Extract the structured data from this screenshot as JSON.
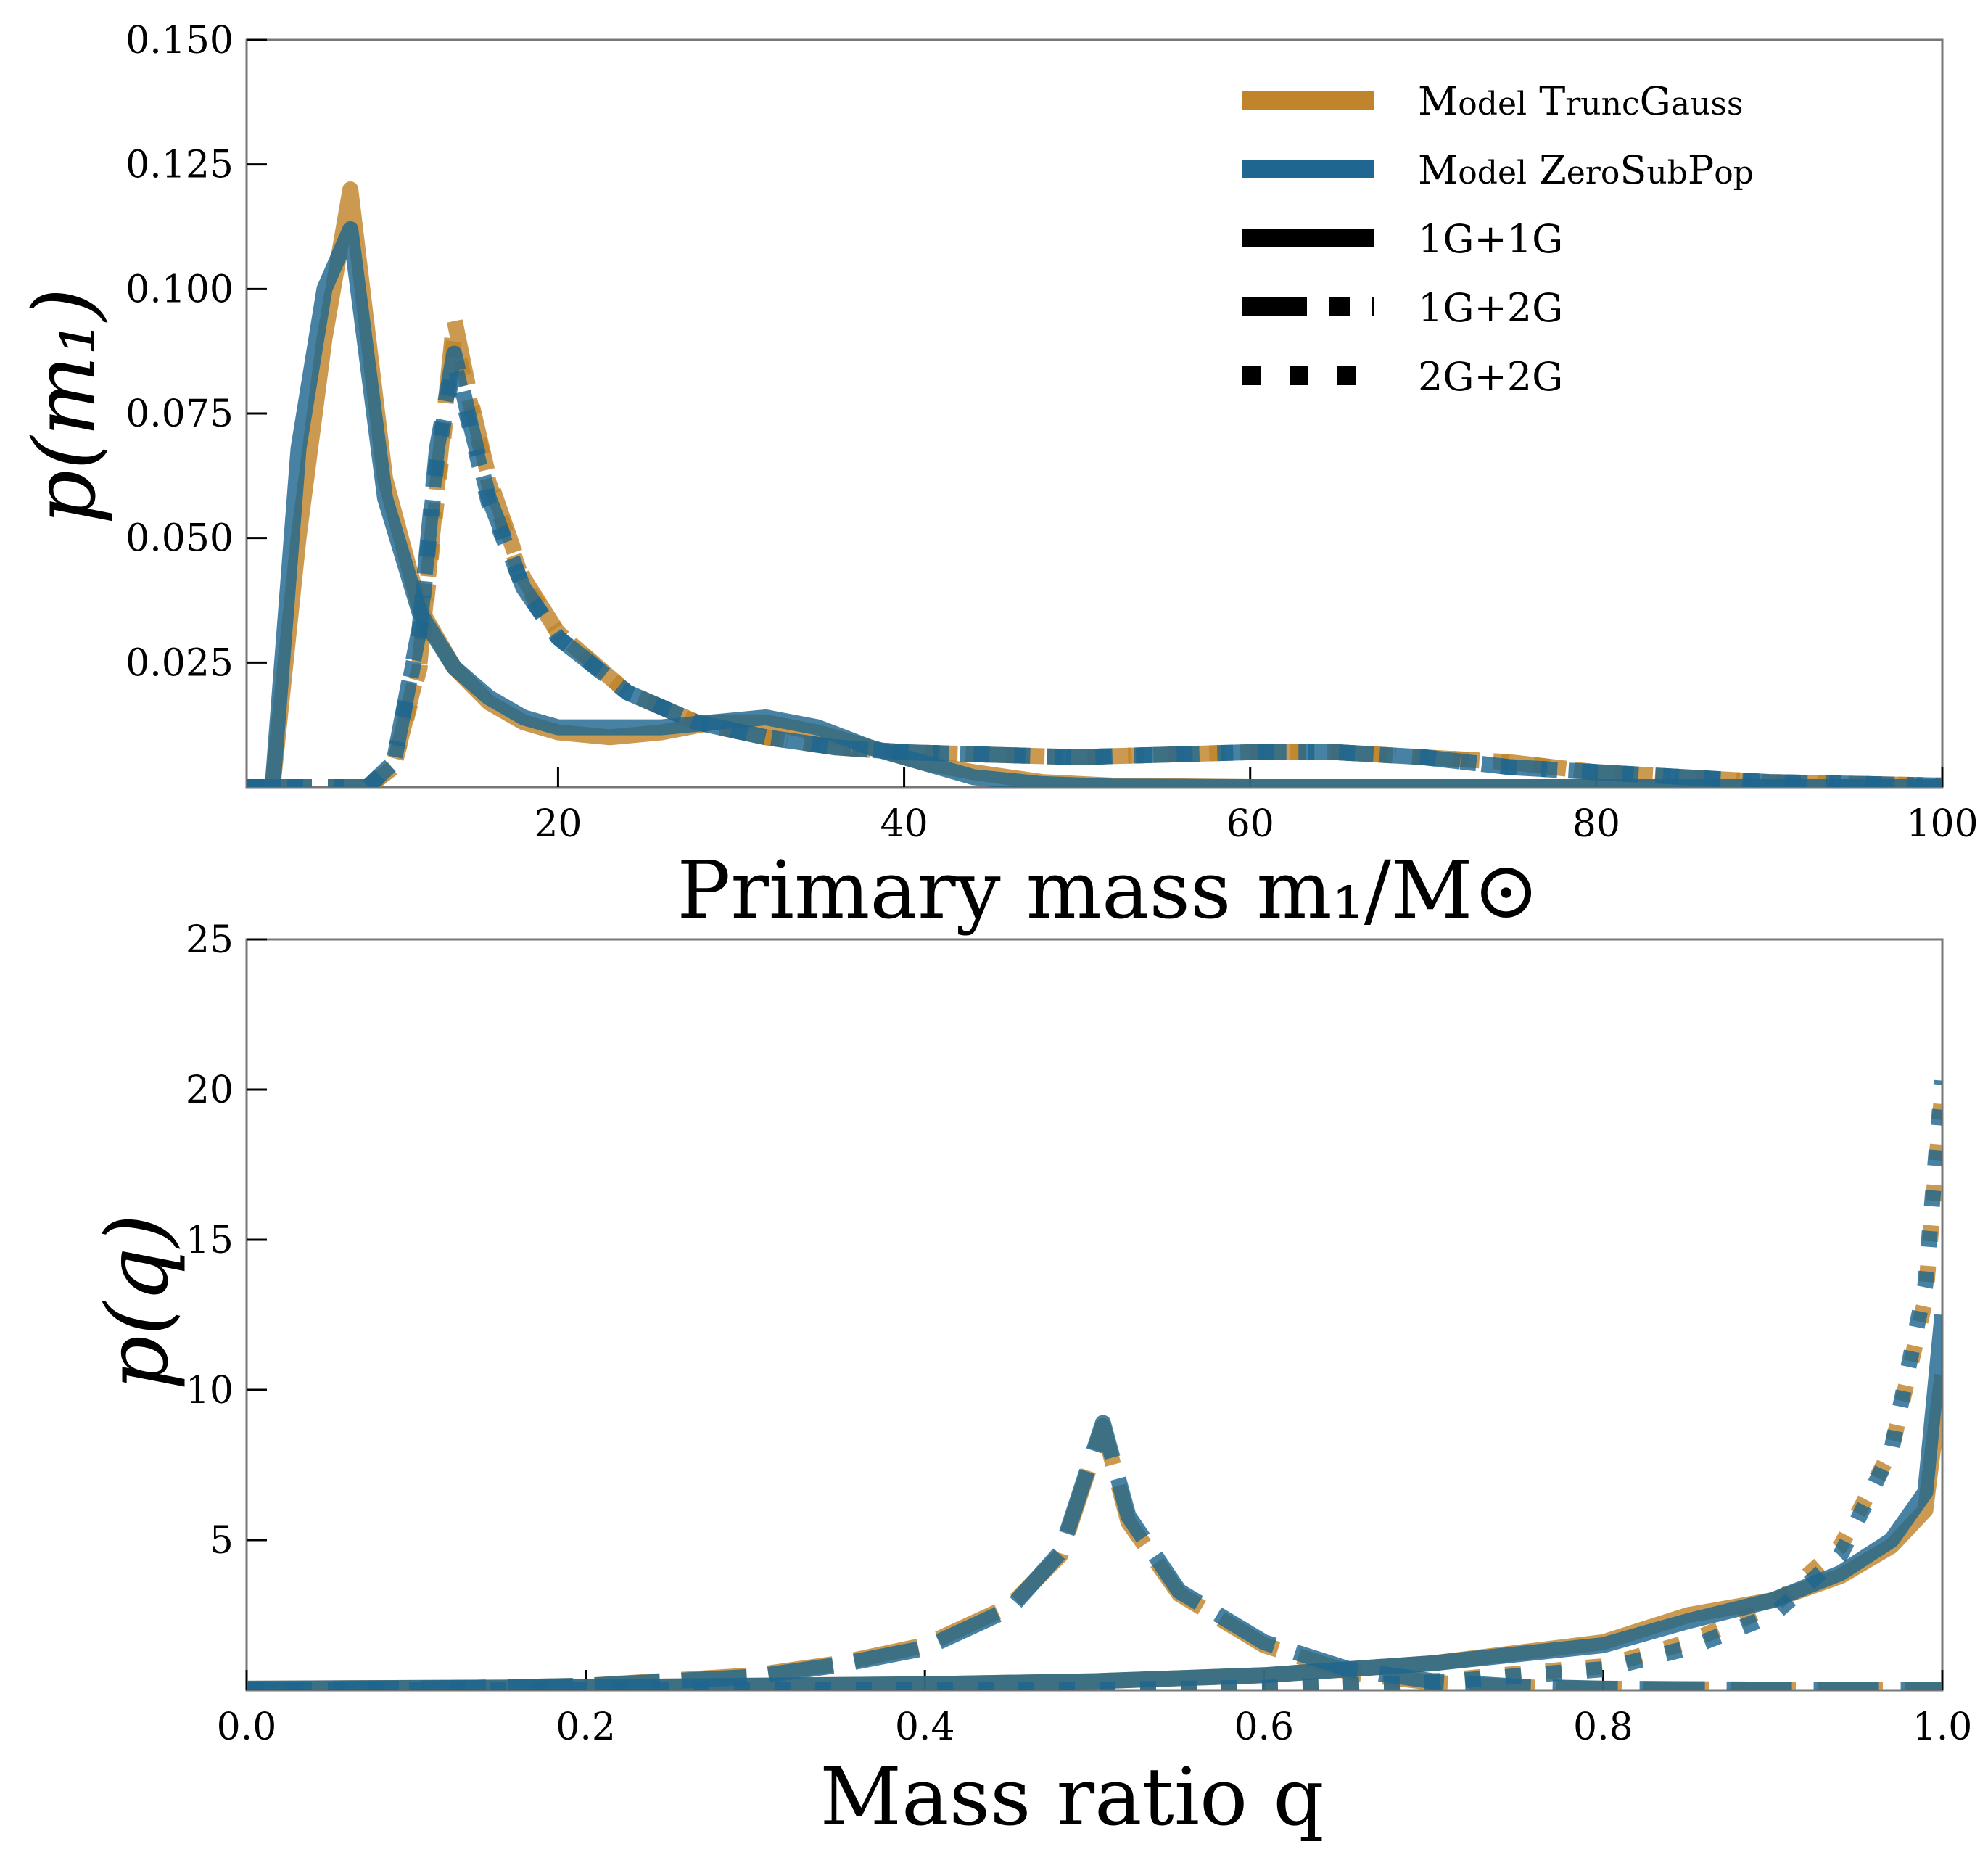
{
  "colors": {
    "truncgauss": "#c0842a",
    "zerosubpop": "#1f6690",
    "frame": "#777777"
  },
  "legend": {
    "items": [
      {
        "name": "legend-truncgauss",
        "label_parts": [
          "M",
          "odel",
          " T",
          "runc",
          "G",
          "auss"
        ],
        "style": "solid",
        "color": "truncgauss"
      },
      {
        "name": "legend-zerosubpop",
        "label_parts": [
          "M",
          "odel",
          " Z",
          "ero",
          "S",
          "ub",
          "P",
          "op"
        ],
        "style": "solid",
        "color": "zerosubpop"
      },
      {
        "name": "legend-1g1g",
        "label": "1G+1G",
        "style": "solid",
        "color": "black"
      },
      {
        "name": "legend-1g2g",
        "label": "1G+2G",
        "style": "dashed",
        "color": "black"
      },
      {
        "name": "legend-2g2g",
        "label": "2G+2G",
        "style": "dotted",
        "color": "black"
      }
    ]
  },
  "chart_data": [
    {
      "type": "line",
      "xlabel": "Primary mass m₁/M⊙",
      "ylabel": "p(m₁)",
      "xlim": [
        2,
        100
      ],
      "ylim": [
        0,
        0.15
      ],
      "xticks": [
        "20",
        "40",
        "60",
        "80",
        "100"
      ],
      "xtick_values": [
        20,
        40,
        60,
        80,
        100
      ],
      "yticks": [
        "0.025",
        "0.050",
        "0.075",
        "0.100",
        "0.125",
        "0.150"
      ],
      "ytick_values": [
        0.025,
        0.05,
        0.075,
        0.1,
        0.125,
        0.15
      ],
      "series": [
        {
          "name": "TruncGauss 1G+1G",
          "model": "truncgauss",
          "style": "solid",
          "x": [
            2,
            3.5,
            5,
            6.5,
            8,
            10,
            12,
            14,
            16,
            18,
            20,
            23,
            26,
            29,
            32,
            35,
            38,
            41,
            44,
            48,
            52,
            60,
            80,
            100
          ],
          "y": [
            0,
            0,
            0.05,
            0.09,
            0.12,
            0.062,
            0.036,
            0.024,
            0.017,
            0.013,
            0.011,
            0.01,
            0.011,
            0.013,
            0.013,
            0.011,
            0.008,
            0.005,
            0.003,
            0.001,
            0.0003,
            0,
            0,
            0
          ]
        },
        {
          "name": "TruncGauss 1G+2G",
          "model": "truncgauss",
          "style": "dashed",
          "x": [
            2,
            9,
            10.5,
            12,
            13,
            14,
            15,
            16,
            18,
            20,
            24,
            28,
            32,
            36,
            40,
            50,
            60,
            65,
            70,
            75,
            80,
            90,
            100
          ],
          "y": [
            0,
            0,
            0.004,
            0.025,
            0.06,
            0.094,
            0.077,
            0.062,
            0.042,
            0.031,
            0.019,
            0.013,
            0.01,
            0.008,
            0.007,
            0.006,
            0.007,
            0.007,
            0.006,
            0.005,
            0.003,
            0.001,
            0.0003
          ]
        },
        {
          "name": "TruncGauss 2G+2G",
          "model": "truncgauss",
          "style": "dotted",
          "x": [
            2,
            9,
            10.5,
            12,
            13,
            14,
            15,
            16,
            18,
            20,
            24,
            28,
            32,
            36,
            40,
            50,
            60,
            65,
            70,
            75,
            80,
            90,
            100
          ],
          "y": [
            0,
            0,
            0.004,
            0.024,
            0.058,
            0.09,
            0.076,
            0.061,
            0.041,
            0.031,
            0.019,
            0.013,
            0.01,
            0.008,
            0.007,
            0.006,
            0.007,
            0.007,
            0.006,
            0.005,
            0.003,
            0.001,
            0.0003
          ]
        },
        {
          "name": "ZeroSubPop 1G+1G",
          "model": "zerosubpop",
          "style": "solid",
          "x": [
            2,
            3.5,
            5,
            6.5,
            8,
            10,
            12,
            14,
            16,
            18,
            20,
            23,
            26,
            29,
            32,
            35,
            38,
            41,
            44,
            48,
            52,
            60,
            80,
            100
          ],
          "y": [
            0,
            0,
            0.068,
            0.1,
            0.112,
            0.058,
            0.035,
            0.024,
            0.018,
            0.014,
            0.012,
            0.012,
            0.012,
            0.013,
            0.014,
            0.012,
            0.008,
            0.005,
            0.002,
            0.0006,
            0.0001,
            0,
            0,
            0
          ]
        },
        {
          "name": "ZeroSubPop 1G+2G",
          "model": "zerosubpop",
          "style": "dashed",
          "x": [
            2,
            9,
            10.5,
            12,
            13,
            14,
            15,
            16,
            18,
            20,
            24,
            28,
            32,
            36,
            40,
            50,
            60,
            65,
            70,
            75,
            80,
            90,
            100
          ],
          "y": [
            0,
            0,
            0.005,
            0.032,
            0.068,
            0.087,
            0.072,
            0.058,
            0.04,
            0.03,
            0.019,
            0.013,
            0.01,
            0.008,
            0.007,
            0.006,
            0.007,
            0.007,
            0.006,
            0.004,
            0.003,
            0.001,
            0.0003
          ]
        },
        {
          "name": "ZeroSubPop 2G+2G",
          "model": "zerosubpop",
          "style": "dotted",
          "x": [
            2,
            9,
            10.5,
            12,
            13,
            14,
            15,
            16,
            18,
            20,
            24,
            28,
            32,
            36,
            40,
            50,
            60,
            65,
            70,
            75,
            80,
            90,
            100
          ],
          "y": [
            0,
            0,
            0.005,
            0.031,
            0.066,
            0.085,
            0.071,
            0.057,
            0.04,
            0.03,
            0.019,
            0.013,
            0.01,
            0.008,
            0.007,
            0.006,
            0.007,
            0.007,
            0.006,
            0.004,
            0.003,
            0.001,
            0.0003
          ]
        }
      ]
    },
    {
      "type": "line",
      "xlabel": "Mass ratio q",
      "ylabel": "p(q)",
      "xlim": [
        0,
        1
      ],
      "ylim": [
        0,
        25
      ],
      "xticks": [
        "0.0",
        "0.2",
        "0.4",
        "0.6",
        "0.8",
        "1.0"
      ],
      "xtick_values": [
        0,
        0.2,
        0.4,
        0.6,
        0.8,
        1.0
      ],
      "yticks": [
        "5",
        "10",
        "15",
        "20",
        "25"
      ],
      "ytick_values": [
        5,
        10,
        15,
        20,
        25
      ],
      "series": [
        {
          "name": "TruncGauss 1G+1G",
          "model": "truncgauss",
          "style": "solid",
          "x": [
            0,
            0.2,
            0.4,
            0.5,
            0.6,
            0.7,
            0.8,
            0.85,
            0.9,
            0.94,
            0.97,
            0.99,
            1.0
          ],
          "y": [
            0.05,
            0.1,
            0.2,
            0.3,
            0.5,
            0.9,
            1.6,
            2.5,
            3.0,
            3.8,
            4.8,
            6.0,
            10.5
          ]
        },
        {
          "name": "TruncGauss 1G+2G",
          "model": "truncgauss",
          "style": "dashed",
          "x": [
            0,
            0.1,
            0.2,
            0.3,
            0.35,
            0.4,
            0.45,
            0.48,
            0.505,
            0.52,
            0.55,
            0.6,
            0.65,
            0.7,
            0.75,
            0.8,
            0.9,
            1.0
          ],
          "y": [
            0.02,
            0.05,
            0.15,
            0.5,
            0.9,
            1.5,
            2.8,
            4.5,
            8.8,
            5.6,
            3.2,
            1.5,
            0.6,
            0.25,
            0.1,
            0.05,
            0.02,
            0.01
          ]
        },
        {
          "name": "TruncGauss 2G+2G",
          "model": "truncgauss",
          "style": "dotted",
          "x": [
            0,
            0.4,
            0.5,
            0.6,
            0.7,
            0.8,
            0.85,
            0.9,
            0.94,
            0.97,
            0.99,
            1.0
          ],
          "y": [
            0,
            0,
            0.02,
            0.1,
            0.3,
            0.8,
            1.6,
            2.8,
            4.8,
            8.0,
            13.0,
            20.0
          ]
        },
        {
          "name": "ZeroSubPop 1G+1G",
          "model": "zerosubpop",
          "style": "solid",
          "x": [
            0,
            0.2,
            0.4,
            0.5,
            0.6,
            0.7,
            0.8,
            0.85,
            0.9,
            0.94,
            0.97,
            0.99,
            1.0
          ],
          "y": [
            0.05,
            0.1,
            0.2,
            0.3,
            0.5,
            0.9,
            1.5,
            2.3,
            3.0,
            3.9,
            5.0,
            6.6,
            12.5
          ]
        },
        {
          "name": "ZeroSubPop 1G+2G",
          "model": "zerosubpop",
          "style": "dashed",
          "x": [
            0,
            0.1,
            0.2,
            0.3,
            0.35,
            0.4,
            0.45,
            0.48,
            0.505,
            0.52,
            0.55,
            0.6,
            0.65,
            0.7,
            0.75,
            0.8,
            0.9,
            1.0
          ],
          "y": [
            0.02,
            0.05,
            0.15,
            0.45,
            0.85,
            1.4,
            2.7,
            4.6,
            8.9,
            5.8,
            3.3,
            1.6,
            0.7,
            0.3,
            0.12,
            0.05,
            0.02,
            0.01
          ]
        },
        {
          "name": "ZeroSubPop 2G+2G",
          "model": "zerosubpop",
          "style": "dotted",
          "x": [
            0,
            0.4,
            0.5,
            0.6,
            0.7,
            0.8,
            0.85,
            0.9,
            0.94,
            0.97,
            0.99,
            1.0
          ],
          "y": [
            0,
            0,
            0.02,
            0.08,
            0.25,
            0.7,
            1.4,
            2.5,
            4.5,
            8.0,
            13.5,
            20.3
          ]
        }
      ]
    }
  ]
}
